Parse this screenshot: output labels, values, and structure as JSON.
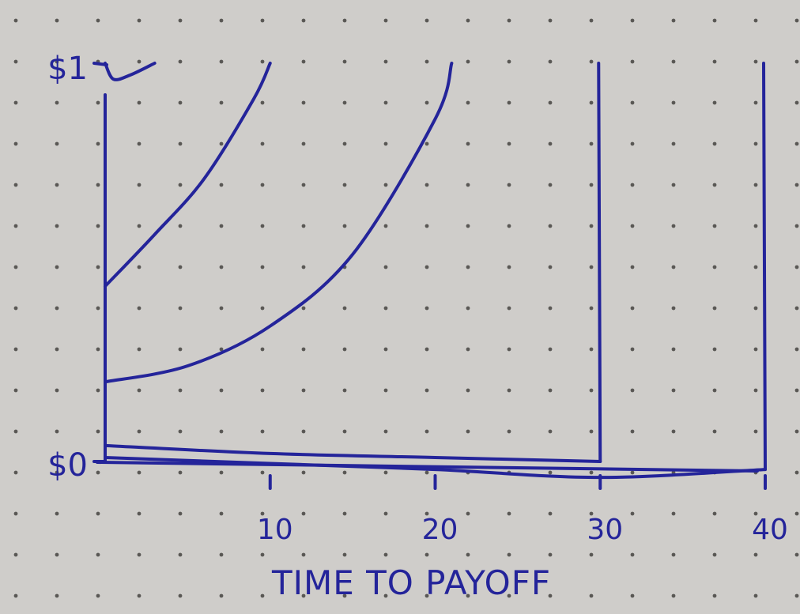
{
  "chart_data": {
    "type": "line",
    "title": "",
    "xlabel": "TIME TO PAYOFF",
    "ylabel": "",
    "x_ticks": [
      10,
      20,
      30,
      40
    ],
    "x_tick_labels": [
      "10",
      "20",
      "30",
      "40"
    ],
    "y_tick_labels": [
      "$0",
      "$1"
    ],
    "xlim": [
      0,
      40
    ],
    "ylim": [
      0,
      1
    ],
    "grid": false,
    "legend": "none",
    "line_color": "#24249a",
    "paper_color": "#cfcdca",
    "dot_color": "#5a5855",
    "series": [
      {
        "x": [
          0,
          0.5,
          1.5,
          3
        ],
        "y": [
          1,
          0.96,
          0.97,
          1
        ],
        "baseline_to": 3
      },
      {
        "x": [
          0,
          3,
          6,
          9,
          10
        ],
        "y": [
          0.44,
          0.57,
          0.71,
          0.91,
          1
        ],
        "baseline_to": 10
      },
      {
        "x": [
          0,
          5,
          10,
          15,
          20,
          21
        ],
        "y": [
          0.2,
          0.24,
          0.34,
          0.52,
          0.86,
          1
        ],
        "baseline_to": 21
      },
      {
        "x": [
          0,
          10,
          20,
          30
        ],
        "y": [
          0.04,
          0.02,
          0.01,
          0
        ],
        "drop_from_top_at": 30
      },
      {
        "x": [
          0,
          10,
          20,
          30,
          40
        ],
        "y": [
          0.01,
          -0.005,
          -0.02,
          -0.04,
          -0.02
        ],
        "drop_from_top_at": 40
      }
    ]
  }
}
